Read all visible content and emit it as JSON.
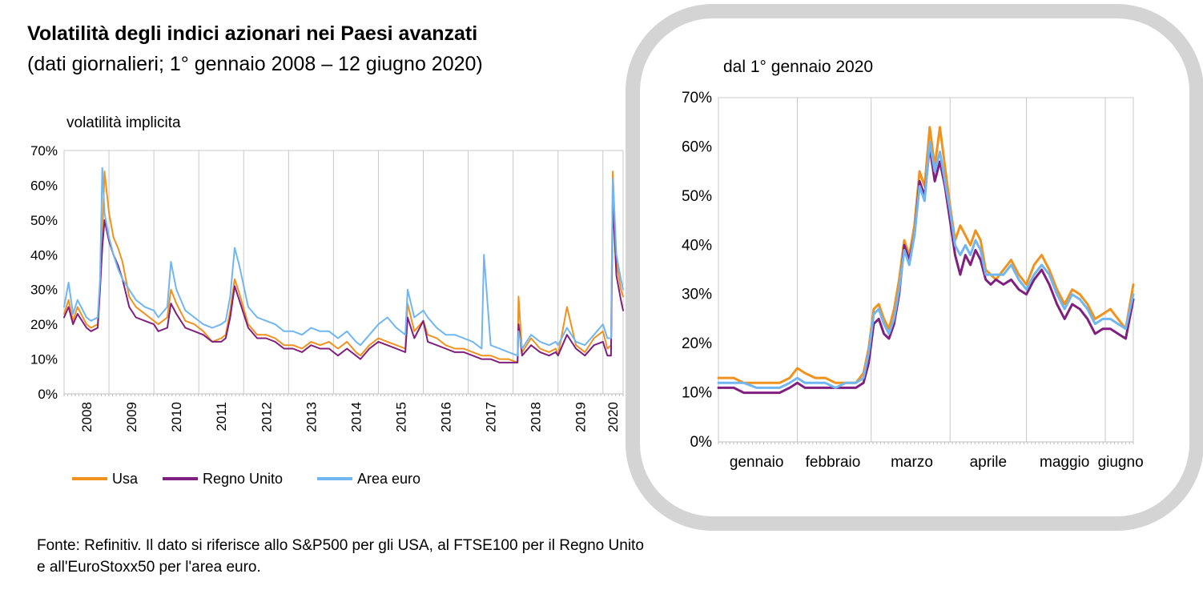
{
  "title": "Volatilità degli indici azionari nei Paesi avanzati",
  "subtitle": "(dati giornalieri; 1° gennaio 2008 – 12 giugno 2020)",
  "source": "Fonte: Refinitiv. Il dato si riferisce allo S&P500 per gli USA, al FTSE100 per il Regno Unito e all'EuroStoxx50 per l'area euro.",
  "chart_data": [
    {
      "type": "line",
      "title": "volatilità implicita",
      "xlabel": "",
      "ylabel": "",
      "ylim": [
        0,
        70
      ],
      "yticks": [
        "0%",
        "10%",
        "20%",
        "30%",
        "40%",
        "50%",
        "60%",
        "70%"
      ],
      "xticks": [
        "2008",
        "2009",
        "2010",
        "2011",
        "2012",
        "2013",
        "2014",
        "2015",
        "2016",
        "2017",
        "2018",
        "2019",
        "2020"
      ],
      "xlim": [
        2008.0,
        2020.45
      ],
      "grid": "vertical",
      "legend": "bottom",
      "series": [
        {
          "name": "Usa",
          "color": "#F0921E",
          "x": [
            2008.0,
            2008.1,
            2008.2,
            2008.3,
            2008.5,
            2008.6,
            2008.75,
            2008.8,
            2008.85,
            2008.9,
            2009.0,
            2009.1,
            2009.2,
            2009.3,
            2009.45,
            2009.6,
            2009.8,
            2010.0,
            2010.1,
            2010.3,
            2010.38,
            2010.5,
            2010.7,
            2010.9,
            2011.1,
            2011.3,
            2011.5,
            2011.6,
            2011.7,
            2011.8,
            2011.9,
            2012.1,
            2012.3,
            2012.5,
            2012.7,
            2012.9,
            2013.1,
            2013.3,
            2013.5,
            2013.7,
            2013.9,
            2014.1,
            2014.3,
            2014.5,
            2014.6,
            2014.8,
            2015.0,
            2015.2,
            2015.4,
            2015.6,
            2015.65,
            2015.8,
            2016.0,
            2016.1,
            2016.3,
            2016.5,
            2016.7,
            2016.9,
            2017.1,
            2017.3,
            2017.5,
            2017.7,
            2017.9,
            2018.1,
            2018.12,
            2018.2,
            2018.4,
            2018.6,
            2018.8,
            2018.95,
            2019.0,
            2019.2,
            2019.4,
            2019.6,
            2019.8,
            2020.0,
            2020.1,
            2020.18,
            2020.22,
            2020.3,
            2020.4,
            2020.45
          ],
          "y": [
            23,
            27,
            21,
            25,
            20,
            19,
            20,
            32,
            45,
            64,
            52,
            45,
            42,
            38,
            28,
            25,
            23,
            21,
            20,
            22,
            30,
            26,
            21,
            20,
            18,
            15,
            16,
            17,
            24,
            33,
            29,
            20,
            17,
            17,
            16,
            14,
            14,
            13,
            15,
            14,
            15,
            13,
            15,
            12,
            11,
            14,
            16,
            15,
            14,
            13,
            26,
            18,
            21,
            17,
            16,
            14,
            13,
            13,
            12,
            11,
            11,
            10,
            10,
            9,
            28,
            12,
            16,
            13,
            12,
            13,
            11,
            25,
            14,
            12,
            16,
            18,
            13,
            14,
            64,
            38,
            30,
            28
          ]
        },
        {
          "name": "Regno Unito",
          "color": "#7F1F7E",
          "x": [
            2008.0,
            2008.1,
            2008.2,
            2008.3,
            2008.5,
            2008.6,
            2008.75,
            2008.8,
            2008.85,
            2008.9,
            2009.0,
            2009.1,
            2009.2,
            2009.3,
            2009.45,
            2009.6,
            2009.8,
            2010.0,
            2010.1,
            2010.3,
            2010.38,
            2010.5,
            2010.7,
            2010.9,
            2011.1,
            2011.3,
            2011.5,
            2011.6,
            2011.7,
            2011.8,
            2011.9,
            2012.1,
            2012.3,
            2012.5,
            2012.7,
            2012.9,
            2013.1,
            2013.3,
            2013.5,
            2013.7,
            2013.9,
            2014.1,
            2014.3,
            2014.5,
            2014.6,
            2014.8,
            2015.0,
            2015.2,
            2015.4,
            2015.6,
            2015.65,
            2015.8,
            2016.0,
            2016.1,
            2016.3,
            2016.5,
            2016.7,
            2016.9,
            2017.1,
            2017.3,
            2017.5,
            2017.7,
            2017.9,
            2018.1,
            2018.12,
            2018.2,
            2018.4,
            2018.6,
            2018.8,
            2018.95,
            2019.0,
            2019.2,
            2019.4,
            2019.6,
            2019.8,
            2020.0,
            2020.1,
            2020.18,
            2020.22,
            2020.3,
            2020.4,
            2020.45
          ],
          "y": [
            22,
            25,
            20,
            23,
            19,
            18,
            19,
            30,
            42,
            50,
            44,
            40,
            37,
            33,
            25,
            22,
            21,
            20,
            18,
            19,
            26,
            23,
            19,
            18,
            17,
            15,
            15,
            16,
            22,
            31,
            27,
            19,
            16,
            16,
            15,
            13,
            13,
            12,
            14,
            13,
            13,
            11,
            13,
            11,
            10,
            13,
            15,
            14,
            13,
            12,
            22,
            16,
            21,
            15,
            14,
            13,
            12,
            12,
            11,
            10,
            10,
            9,
            9,
            9,
            20,
            11,
            14,
            12,
            11,
            12,
            11,
            17,
            13,
            11,
            14,
            15,
            11,
            11,
            56,
            34,
            27,
            24
          ]
        },
        {
          "name": "Area euro",
          "color": "#71B6F0",
          "x": [
            2008.0,
            2008.1,
            2008.2,
            2008.3,
            2008.5,
            2008.6,
            2008.75,
            2008.8,
            2008.85,
            2008.9,
            2009.0,
            2009.1,
            2009.2,
            2009.3,
            2009.45,
            2009.6,
            2009.8,
            2010.0,
            2010.1,
            2010.3,
            2010.38,
            2010.5,
            2010.7,
            2010.9,
            2011.1,
            2011.3,
            2011.5,
            2011.6,
            2011.7,
            2011.8,
            2011.9,
            2012.1,
            2012.3,
            2012.5,
            2012.7,
            2012.9,
            2013.1,
            2013.3,
            2013.5,
            2013.7,
            2013.9,
            2014.1,
            2014.3,
            2014.5,
            2014.6,
            2014.8,
            2015.0,
            2015.2,
            2015.4,
            2015.6,
            2015.65,
            2015.8,
            2016.0,
            2016.1,
            2016.3,
            2016.5,
            2016.7,
            2016.9,
            2017.1,
            2017.3,
            2017.35,
            2017.5,
            2017.7,
            2017.9,
            2018.1,
            2018.12,
            2018.2,
            2018.4,
            2018.6,
            2018.8,
            2018.95,
            2019.0,
            2019.2,
            2019.4,
            2019.6,
            2019.8,
            2020.0,
            2020.1,
            2020.18,
            2020.22,
            2020.3,
            2020.4,
            2020.45
          ],
          "y": [
            25,
            32,
            23,
            27,
            22,
            21,
            22,
            33,
            65,
            52,
            45,
            40,
            36,
            33,
            30,
            27,
            25,
            24,
            22,
            25,
            38,
            30,
            24,
            22,
            20,
            19,
            20,
            21,
            28,
            42,
            37,
            25,
            22,
            21,
            20,
            18,
            18,
            17,
            19,
            18,
            18,
            16,
            18,
            15,
            14,
            17,
            20,
            22,
            19,
            17,
            30,
            22,
            24,
            22,
            19,
            17,
            17,
            16,
            15,
            13,
            40,
            14,
            13,
            12,
            11,
            18,
            13,
            17,
            15,
            14,
            15,
            14,
            19,
            15,
            14,
            17,
            20,
            16,
            16,
            62,
            40,
            33,
            30
          ]
        }
      ]
    },
    {
      "type": "line",
      "title": "dal 1° gennaio 2020",
      "xlabel": "",
      "ylabel": "",
      "ylim": [
        0,
        70
      ],
      "yticks": [
        "0%",
        "10%",
        "20%",
        "30%",
        "40%",
        "50%",
        "60%",
        "70%"
      ],
      "xticks": [
        "gennaio",
        "febbraio",
        "marzo",
        "aprile",
        "maggio",
        "giugno"
      ],
      "xlim": [
        0,
        163
      ],
      "grid": "vertical",
      "series": [
        {
          "name": "Usa",
          "color": "#F0921E",
          "x": [
            0,
            3,
            6,
            10,
            15,
            20,
            24,
            28,
            31,
            34,
            38,
            42,
            46,
            50,
            54,
            57,
            59,
            60,
            61,
            63,
            65,
            67,
            69,
            71,
            73,
            75,
            77,
            79,
            81,
            83,
            85,
            87,
            89,
            91,
            93,
            95,
            97,
            99,
            101,
            103,
            105,
            107,
            109,
            112,
            115,
            118,
            121,
            124,
            127,
            130,
            133,
            136,
            139,
            142,
            145,
            148,
            151,
            154,
            157,
            160,
            163
          ],
          "y": [
            13,
            13,
            13,
            12,
            12,
            12,
            12,
            13,
            15,
            14,
            13,
            13,
            12,
            12,
            12,
            14,
            19,
            23,
            27,
            28,
            25,
            23,
            27,
            33,
            41,
            38,
            44,
            55,
            52,
            64,
            56,
            64,
            56,
            48,
            41,
            44,
            42,
            40,
            43,
            41,
            35,
            34,
            33,
            35,
            37,
            34,
            32,
            36,
            38,
            35,
            31,
            28,
            31,
            30,
            28,
            25,
            26,
            27,
            25,
            23,
            32
          ]
        },
        {
          "name": "Regno Unito",
          "color": "#7F1F7E",
          "x": [
            0,
            3,
            6,
            10,
            15,
            20,
            24,
            28,
            31,
            34,
            38,
            42,
            46,
            50,
            54,
            57,
            59,
            60,
            61,
            63,
            65,
            67,
            69,
            71,
            73,
            75,
            77,
            79,
            81,
            83,
            85,
            87,
            89,
            91,
            93,
            95,
            97,
            99,
            101,
            103,
            105,
            107,
            109,
            112,
            115,
            118,
            121,
            124,
            127,
            130,
            133,
            136,
            139,
            142,
            145,
            148,
            151,
            154,
            157,
            160,
            163
          ],
          "y": [
            11,
            11,
            11,
            10,
            10,
            10,
            10,
            11,
            12,
            11,
            11,
            11,
            11,
            11,
            11,
            12,
            16,
            20,
            24,
            25,
            22,
            21,
            24,
            30,
            40,
            37,
            42,
            53,
            50,
            60,
            53,
            57,
            52,
            45,
            38,
            34,
            38,
            36,
            39,
            37,
            33,
            32,
            33,
            32,
            33,
            31,
            30,
            33,
            35,
            32,
            28,
            25,
            28,
            27,
            25,
            22,
            23,
            23,
            22,
            21,
            29
          ]
        },
        {
          "name": "Area euro",
          "color": "#71B6F0",
          "x": [
            0,
            3,
            6,
            10,
            15,
            20,
            24,
            28,
            31,
            34,
            38,
            42,
            46,
            50,
            54,
            57,
            59,
            60,
            61,
            63,
            65,
            67,
            69,
            71,
            73,
            75,
            77,
            79,
            81,
            83,
            85,
            87,
            89,
            91,
            93,
            95,
            97,
            99,
            101,
            103,
            105,
            107,
            109,
            112,
            115,
            118,
            121,
            124,
            127,
            130,
            133,
            136,
            139,
            142,
            145,
            148,
            151,
            154,
            157,
            160,
            163
          ],
          "y": [
            12,
            12,
            12,
            12,
            11,
            11,
            11,
            12,
            13,
            12,
            12,
            12,
            11,
            12,
            12,
            13,
            18,
            22,
            26,
            27,
            24,
            22,
            25,
            31,
            39,
            36,
            42,
            52,
            49,
            61,
            55,
            59,
            53,
            47,
            40,
            38,
            40,
            38,
            41,
            39,
            34,
            34,
            34,
            34,
            36,
            33,
            31,
            34,
            36,
            34,
            30,
            27,
            30,
            29,
            27,
            24,
            25,
            25,
            24,
            23,
            30
          ]
        }
      ]
    }
  ]
}
